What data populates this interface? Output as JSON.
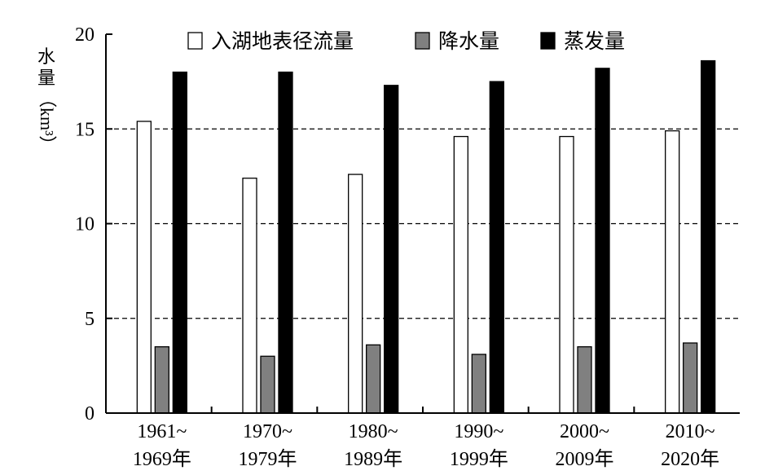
{
  "chart_data": {
    "type": "bar",
    "title": "",
    "xlabel": "",
    "ylabel_chars": [
      "水",
      "量"
    ],
    "ylabel_unit": "（km³）",
    "ylim": [
      0,
      20
    ],
    "yticks": [
      "0",
      "5",
      "10",
      "15",
      "20"
    ],
    "grid": "dashed horizontal lines at 5, 10, 15",
    "legend_position": "top",
    "categories": [
      [
        "1961~",
        "1969年"
      ],
      [
        "1970~",
        "1979年"
      ],
      [
        "1980~",
        "1989年"
      ],
      [
        "1990~",
        "1999年"
      ],
      [
        "2000~",
        "2009年"
      ],
      [
        "2010~",
        "2020年"
      ]
    ],
    "series": [
      {
        "name": "入湖地表径流量",
        "color": "#ffffff",
        "values": [
          15.4,
          12.4,
          12.6,
          14.6,
          14.6,
          14.9
        ]
      },
      {
        "name": "降水量",
        "color": "#808080",
        "values": [
          3.5,
          3.0,
          3.6,
          3.1,
          3.5,
          3.7
        ]
      },
      {
        "name": "蒸发量",
        "color": "#000000",
        "values": [
          18.0,
          18.0,
          17.3,
          17.5,
          18.2,
          18.6
        ]
      }
    ]
  }
}
